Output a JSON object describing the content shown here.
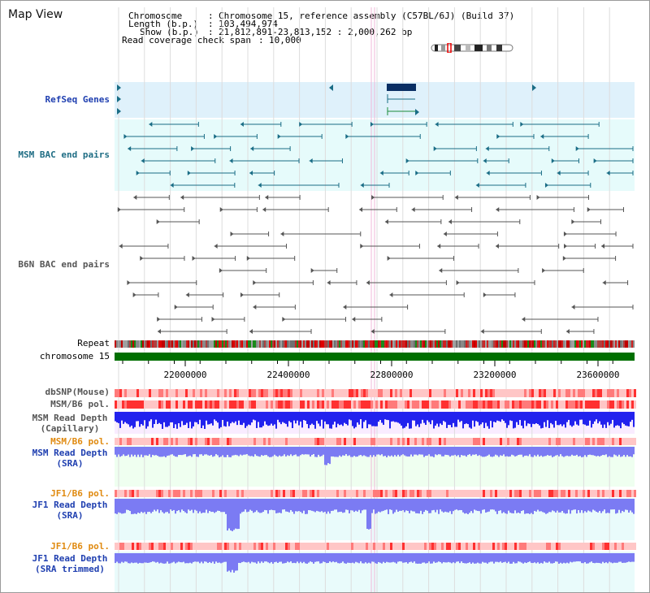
{
  "page": {
    "title": "Map View"
  },
  "info": {
    "chromosome_key": "Chromosome",
    "chromosome_value": "Chromosome 15, reference assembly (C57BL/6J) (Build 37)",
    "length_key": "Length (b.p.)",
    "length_value": "103,494,974",
    "show_key": "Show (b.p.)",
    "show_value": "21,812,891-23,813,152 : 2,000,262 bp",
    "coverage_key": "Read coverage check span",
    "coverage_value": "10,000"
  },
  "tracks": {
    "refseq": "RefSeq Genes",
    "msm_bac": "MSM BAC end pairs",
    "b6n_bac": "B6N BAC end pairs",
    "repeat": "Repeat",
    "chromosome": "chromosome 15",
    "dbsnp": "dbSNP(Mouse)",
    "msm_b6_pol": "MSM/B6 pol.",
    "msm_depth_cap_1": "MSM Read Depth",
    "msm_depth_cap_2": "(Capillary)",
    "msm_b6_pol_2": "MSM/B6 pol.",
    "msm_depth_sra_1": "MSM Read Depth",
    "msm_depth_sra_2": "(SRA)",
    "jf1_b6_pol": "JF1/B6 pol.",
    "jf1_depth_sra_1": "JF1 Read Depth",
    "jf1_depth_sra_2": "(SRA)",
    "jf1_b6_pol_2": "JF1/B6 pol.",
    "jf1_depth_trim_1": "JF1 Read Depth",
    "jf1_depth_trim_2": "(SRA trimmed)"
  },
  "ruler": {
    "ticks": [
      "22000000",
      "22400000",
      "22800000",
      "23200000",
      "23600000"
    ]
  },
  "colors": {
    "gene_fill": "#dff1fb",
    "bac_fill": "#e6fbfb",
    "teal": "#1a6d86",
    "gray_feature": "#555555",
    "chromosome_green": "#006f00",
    "pol_red": "#ff3030",
    "pol_pink": "#ffc6c6",
    "depth_blue": "#2222ee",
    "depth_light": "#7b7bf3",
    "depth_bg": "#f9ecff",
    "sra_bg": "#effff0",
    "label_blue": "#1f3fb0",
    "label_orange": "#e08a10"
  },
  "icons": [
    "chromosome-ideogram",
    "strand-arrow-icon"
  ]
}
